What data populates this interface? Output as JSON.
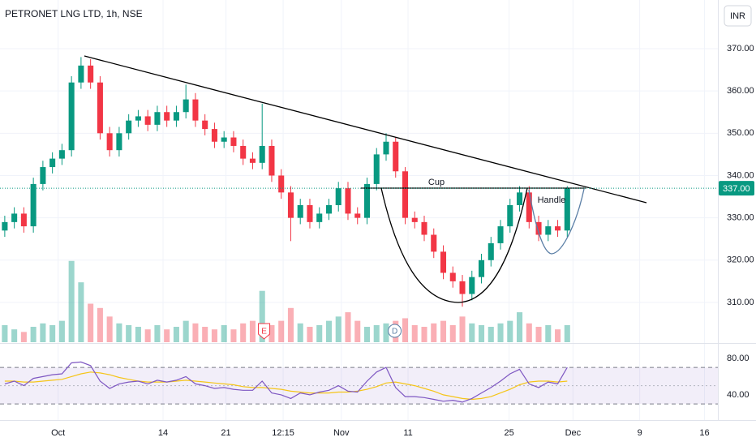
{
  "chart_data": {
    "type": "candlestick",
    "title": "PETRONET LNG LTD, 1h, NSE",
    "currency": "INR",
    "up_color": "#089981",
    "down_color": "#f23645",
    "x": [
      0.5,
      1.5,
      2.5,
      3.5,
      4.5,
      5.5,
      6.5,
      7.5,
      8.5,
      9.5,
      10.5,
      11.5,
      12.5,
      13.5,
      14.5,
      15.5,
      16.5,
      17.5,
      18.5,
      19.5,
      20.5,
      21.5,
      22.5,
      23.5,
      24.5,
      25.5,
      26.5,
      27.5,
      28.5,
      29.5,
      30.5,
      31.5,
      32.5,
      33.5,
      34.5,
      35.5,
      36.5,
      37.5,
      38.5,
      39.5,
      40.5,
      41.5,
      42.5,
      43.5,
      44.5,
      45.5,
      46.5,
      47.5,
      48.5,
      49.5,
      50.5,
      51.5,
      52.5,
      53.5,
      54.5,
      55.5,
      56.5,
      57.5,
      58.5,
      59.5
    ],
    "open": [
      327,
      329,
      331,
      328,
      338,
      342,
      344,
      346,
      362,
      366,
      362,
      350,
      346,
      350,
      353,
      354,
      352,
      355,
      353,
      355,
      358,
      353,
      351,
      348,
      349,
      347,
      344,
      343,
      347,
      340,
      336,
      330,
      333,
      329,
      331,
      333,
      337,
      331,
      330,
      338,
      345,
      348,
      341,
      330,
      329,
      326,
      322,
      317,
      315,
      312,
      316,
      320,
      324,
      328,
      333,
      336,
      329,
      326,
      328,
      327
    ],
    "high": [
      330.5,
      332.5,
      332.5,
      339.5,
      343.5,
      345.5,
      347.5,
      363.5,
      368,
      367.5,
      363.5,
      351.5,
      351.5,
      354.5,
      355.5,
      355.5,
      356.5,
      356.5,
      356.5,
      361.5,
      359.5,
      354.5,
      352.5,
      350.5,
      350.5,
      348.5,
      345.5,
      357,
      348.5,
      341.5,
      337.5,
      334.5,
      334.5,
      332.5,
      334.5,
      338.5,
      338.5,
      332.5,
      339.5,
      346.5,
      350,
      349,
      342,
      331.5,
      330.5,
      327.5,
      323.5,
      318.5,
      316.5,
      317.5,
      321.5,
      325.5,
      329.5,
      334.5,
      337.5,
      337.5,
      330.5,
      329.5,
      329.5,
      337.5
    ],
    "low": [
      325.5,
      327.5,
      326.5,
      326.5,
      336.5,
      340.5,
      342.5,
      344.5,
      360.5,
      360.5,
      348.5,
      344.5,
      344.5,
      348.5,
      351.5,
      350.5,
      350.5,
      351.5,
      351.5,
      353.5,
      351.5,
      349.5,
      346.5,
      346.5,
      345.5,
      342.5,
      341.5,
      341.5,
      338.5,
      334.5,
      324.5,
      328.5,
      327.5,
      327.5,
      329.5,
      331.5,
      329.5,
      328.5,
      328.5,
      336.5,
      343.5,
      339.5,
      328.5,
      327.5,
      324.5,
      320.5,
      315.5,
      313.5,
      309,
      310.5,
      314.5,
      318.5,
      322.5,
      326.5,
      331.5,
      327.5,
      324.5,
      324.5,
      325.5,
      325.5
    ],
    "close": [
      329,
      331,
      328,
      338,
      342,
      344,
      346,
      362,
      366,
      362,
      350,
      346,
      350,
      353,
      354,
      352,
      355,
      353,
      355,
      358,
      353,
      351,
      348,
      349,
      347,
      344,
      343,
      347,
      340,
      336,
      330,
      333,
      329,
      331,
      333,
      337,
      331,
      330,
      338,
      345,
      348,
      341,
      330,
      329,
      326,
      322,
      317,
      315,
      312,
      316,
      320,
      324,
      328,
      333,
      336,
      329,
      326,
      328,
      327,
      337
    ],
    "volume": [
      20,
      15,
      12,
      18,
      22,
      20,
      25,
      95,
      70,
      45,
      40,
      30,
      22,
      20,
      18,
      15,
      20,
      15,
      18,
      25,
      22,
      18,
      15,
      20,
      15,
      22,
      25,
      60,
      20,
      25,
      40,
      22,
      18,
      20,
      25,
      30,
      35,
      25,
      18,
      20,
      22,
      25,
      28,
      20,
      18,
      22,
      25,
      20,
      30,
      22,
      20,
      18,
      22,
      25,
      35,
      22,
      18,
      20,
      15,
      20
    ],
    "volume_lim": [
      0,
      400
    ],
    "xlim": [
      0,
      75.3
    ],
    "xticks": [
      {
        "value": 6.1,
        "label": "Oct"
      },
      {
        "value": 17.1,
        "label": "14"
      },
      {
        "value": 23.7,
        "label": "21"
      },
      {
        "value": 29.7,
        "label": "12:15"
      },
      {
        "value": 35.8,
        "label": "Nov"
      },
      {
        "value": 42.8,
        "label": "11"
      },
      {
        "value": 53.4,
        "label": "25"
      },
      {
        "value": 60.1,
        "label": "Dec"
      },
      {
        "value": 67.1,
        "label": "9"
      },
      {
        "value": 73.9,
        "label": "16"
      }
    ],
    "ylim": [
      300.6,
      381.5
    ],
    "yticks": [
      {
        "value": 310,
        "label": "310.00"
      },
      {
        "value": 320,
        "label": "320.00"
      },
      {
        "value": 330,
        "label": "330.00"
      },
      {
        "value": 340,
        "label": "340.00"
      },
      {
        "value": 350,
        "label": "350.00"
      },
      {
        "value": 360,
        "label": "360.00"
      },
      {
        "value": 370,
        "label": "370.00"
      }
    ],
    "last_price": {
      "value": 337,
      "label": "337.00"
    },
    "annotations": [
      "Cup",
      "Handle"
    ],
    "events": [
      {
        "label": "E",
        "x": 27.7
      },
      {
        "label": "D",
        "x": 41.4
      }
    ],
    "rsi": {
      "color": "#7e57c2",
      "ma_color": "#f5c518",
      "values": [
        52,
        55,
        50,
        58,
        60,
        62,
        63,
        75,
        76,
        72,
        55,
        47,
        52,
        54,
        55,
        52,
        56,
        54,
        56,
        60,
        52,
        50,
        47,
        48,
        46,
        45,
        45,
        55,
        42,
        40,
        36,
        42,
        40,
        43,
        45,
        50,
        44,
        43,
        55,
        65,
        70,
        48,
        38,
        38,
        37,
        35,
        33,
        34,
        32,
        36,
        42,
        48,
        55,
        63,
        68,
        52,
        48,
        54,
        52,
        70
      ],
      "ma": [
        55,
        55,
        54,
        54,
        55,
        56,
        57,
        60,
        63,
        65,
        64,
        62,
        59,
        57,
        55,
        54,
        54,
        54,
        55,
        56,
        55,
        54,
        53,
        52,
        51,
        49,
        48,
        48,
        47,
        46,
        44,
        43,
        42,
        42,
        42,
        43,
        43,
        44,
        46,
        49,
        53,
        54,
        52,
        50,
        47,
        44,
        40,
        38,
        36,
        35,
        36,
        38,
        42,
        46,
        51,
        54,
        55,
        55,
        54,
        55
      ],
      "ylim": [
        15,
        95
      ],
      "yticks": [
        {
          "value": 40,
          "label": "40.00"
        },
        {
          "value": 80,
          "label": "80.00"
        }
      ],
      "bands": [
        70,
        30
      ],
      "mid": 50
    }
  }
}
